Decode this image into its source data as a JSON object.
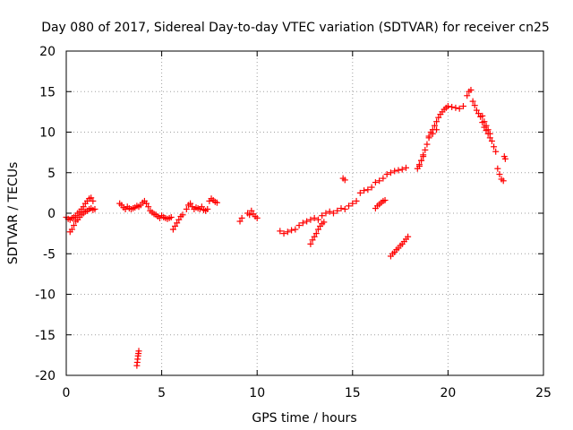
{
  "chart_data": {
    "type": "scatter",
    "title": "Day 080 of 2017, Sidereal Day-to-day VTEC variation (SDTVAR) for receiver cn25",
    "xlabel": "GPS time / hours",
    "ylabel": "SDTVAR / TECUs",
    "xlim": [
      0,
      25
    ],
    "ylim": [
      -20,
      20
    ],
    "x_ticks": [
      "0",
      "5",
      "10",
      "15",
      "20",
      "25"
    ],
    "y_ticks": [
      "20",
      "15",
      "10",
      "5",
      "0",
      "-5",
      "-10",
      "-15",
      "-20"
    ],
    "grid": true,
    "marker": "+",
    "series_color": "#ff0000",
    "series": [
      {
        "x": [
          0.0,
          0.1,
          0.2,
          0.3,
          0.4,
          0.5,
          0.6,
          0.7,
          0.8,
          0.9,
          1.0,
          1.1,
          1.2,
          1.3,
          1.4,
          1.5,
          0.2,
          0.3,
          0.4,
          0.5,
          0.6,
          0.7,
          0.8,
          0.9,
          1.0,
          1.1,
          1.2,
          1.3,
          1.4,
          2.8,
          2.9,
          3.0,
          3.1,
          3.2,
          3.3,
          3.4,
          3.5,
          3.6,
          3.7,
          3.8,
          3.9,
          4.0,
          4.1,
          4.2,
          4.3,
          4.4,
          4.5,
          4.6,
          4.7,
          4.8,
          4.9,
          5.0,
          5.1,
          5.2,
          5.3,
          5.4,
          5.5,
          3.7,
          3.72,
          3.74,
          3.76,
          3.78,
          3.8,
          5.6,
          5.7,
          5.8,
          5.9,
          6.0,
          6.1,
          6.3,
          6.4,
          6.5,
          6.6,
          6.7,
          6.8,
          6.9,
          7.0,
          7.1,
          7.2,
          7.3,
          7.4,
          7.5,
          7.6,
          7.7,
          7.8,
          7.9,
          9.1,
          9.2,
          9.5,
          9.6,
          9.7,
          9.8,
          9.9,
          10.0,
          11.2,
          11.4,
          11.6,
          11.8,
          12.0,
          12.2,
          12.4,
          12.6,
          12.8,
          13.0,
          13.2,
          13.4,
          13.6,
          13.8,
          14.0,
          14.2,
          14.4,
          14.6,
          14.8,
          15.0,
          15.2,
          15.4,
          15.6,
          15.8,
          16.0,
          16.2,
          16.4,
          16.6,
          16.8,
          17.0,
          17.2,
          17.4,
          17.6,
          17.8,
          12.8,
          12.9,
          13.0,
          13.1,
          13.2,
          13.3,
          13.4,
          13.5,
          14.5,
          14.6,
          16.2,
          16.3,
          16.4,
          16.5,
          16.6,
          16.7,
          17.0,
          17.1,
          17.2,
          17.3,
          17.4,
          17.5,
          17.6,
          17.7,
          17.8,
          17.9,
          18.4,
          18.5,
          18.6,
          18.7,
          18.8,
          18.9,
          19.0,
          19.1,
          19.2,
          19.3,
          19.4,
          19.5,
          19.6,
          19.7,
          19.8,
          19.9,
          20.0,
          20.2,
          20.4,
          20.6,
          20.8,
          21.0,
          21.1,
          21.2,
          18.5,
          18.6,
          18.7,
          19.0,
          19.2,
          19.4,
          21.3,
          21.4,
          21.5,
          21.6,
          21.7,
          21.8,
          21.9,
          22.0,
          22.1,
          22.2,
          22.3,
          22.4,
          22.5,
          22.6,
          22.7,
          22.8,
          22.9,
          21.8,
          21.9,
          22.0,
          22.1,
          22.2,
          22.95,
          23.0
        ],
        "y": [
          -0.5,
          -0.7,
          -0.8,
          -0.6,
          -0.5,
          -0.3,
          0.0,
          0.2,
          0.5,
          0.8,
          1.2,
          1.5,
          1.8,
          1.9,
          1.5,
          0.5,
          -2.3,
          -2.0,
          -1.5,
          -1.0,
          -0.8,
          -0.5,
          -0.2,
          0.0,
          0.2,
          0.3,
          0.5,
          0.6,
          0.4,
          1.2,
          1.0,
          0.7,
          0.5,
          0.8,
          0.6,
          0.5,
          0.6,
          0.7,
          0.9,
          0.8,
          1.0,
          1.3,
          1.5,
          1.2,
          0.8,
          0.3,
          0.1,
          -0.1,
          -0.2,
          -0.4,
          -0.6,
          -0.3,
          -0.5,
          -0.6,
          -0.7,
          -0.6,
          -0.5,
          -18.8,
          -18.4,
          -18.0,
          -17.6,
          -17.3,
          -17.0,
          -2.0,
          -1.6,
          -1.2,
          -0.8,
          -0.4,
          -0.2,
          0.5,
          1.0,
          1.2,
          0.8,
          0.5,
          0.7,
          0.6,
          0.5,
          0.8,
          0.4,
          0.3,
          0.5,
          1.5,
          1.8,
          1.6,
          1.4,
          1.3,
          -1.0,
          -0.6,
          0.0,
          -0.2,
          0.3,
          -0.1,
          -0.4,
          -0.6,
          -2.2,
          -2.5,
          -2.3,
          -2.1,
          -2.0,
          -1.5,
          -1.2,
          -1.0,
          -0.8,
          -0.6,
          -0.8,
          -0.3,
          0.0,
          0.2,
          0.0,
          0.3,
          0.6,
          0.5,
          0.9,
          1.2,
          1.5,
          2.5,
          2.8,
          2.9,
          3.2,
          3.8,
          4.0,
          4.3,
          4.8,
          5.0,
          5.2,
          5.3,
          5.4,
          5.6,
          -3.8,
          -3.3,
          -2.9,
          -2.5,
          -2.0,
          -1.6,
          -1.3,
          -1.1,
          4.3,
          4.1,
          0.6,
          0.9,
          1.1,
          1.3,
          1.5,
          1.6,
          -5.3,
          -5.0,
          -4.8,
          -4.5,
          -4.3,
          -4.0,
          -3.8,
          -3.5,
          -3.2,
          -2.9,
          5.5,
          6.0,
          6.5,
          7.0,
          7.8,
          8.5,
          9.5,
          10.0,
          10.3,
          10.8,
          11.3,
          11.8,
          12.2,
          12.5,
          12.8,
          13.0,
          13.2,
          13.1,
          13.0,
          12.9,
          13.2,
          14.5,
          15.0,
          15.2,
          5.8,
          6.5,
          7.2,
          9.3,
          9.8,
          10.3,
          13.8,
          13.3,
          12.7,
          12.3,
          11.9,
          11.2,
          10.6,
          10.2,
          9.8,
          9.3,
          8.9,
          8.2,
          7.6,
          5.5,
          4.8,
          4.2,
          4.0,
          12.0,
          11.3,
          10.8,
          10.3,
          9.8,
          7.0,
          6.7
        ]
      }
    ]
  }
}
